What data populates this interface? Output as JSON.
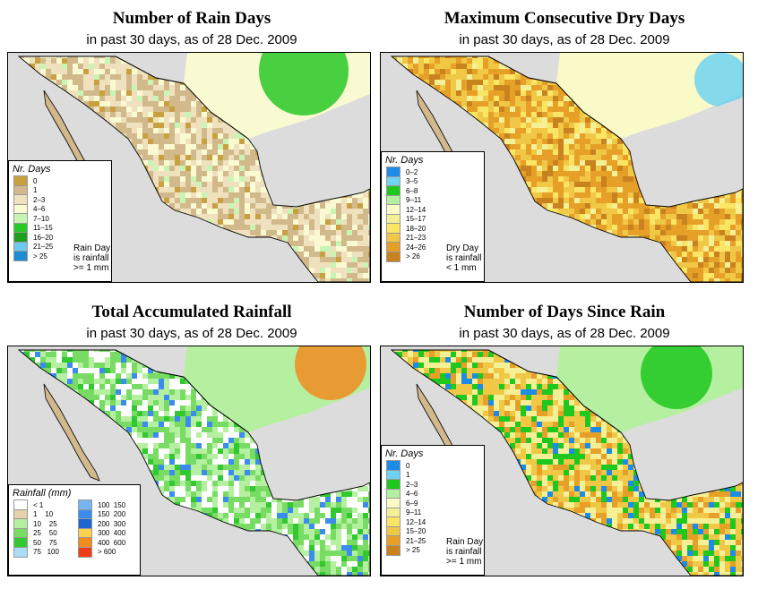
{
  "panels": [
    {
      "id": "rain-days",
      "title": "Number of Rain Days",
      "subtitle": "in past 30 days, as of  28 Dec. 2009",
      "legend_title": "Nr. Days",
      "legend": [
        {
          "label": "0",
          "color": "#c8a040"
        },
        {
          "label": "1",
          "color": "#d2b98c"
        },
        {
          "label": "2–3",
          "color": "#f0e1be"
        },
        {
          "label": "4–6",
          "color": "#fafad2"
        },
        {
          "label": "7–10",
          "color": "#c8f5b4"
        },
        {
          "label": "11–15",
          "color": "#28c828"
        },
        {
          "label": "16–20",
          "color": "#1ea01e"
        },
        {
          "label": "21–25",
          "color": "#6ec8f0"
        },
        {
          "label": "> 25",
          "color": "#1e8cd2"
        }
      ],
      "note": [
        "Rain Day",
        "is rainfall",
        ">= 1 mm"
      ]
    },
    {
      "id": "dry-days",
      "title": "Maximum Consecutive Dry Days",
      "subtitle": "in past 30 days, as of  28 Dec. 2009",
      "legend_title": "Nr. Days",
      "legend": [
        {
          "label": "0–2",
          "color": "#1e8ce6"
        },
        {
          "label": "3–5",
          "color": "#6ed2f0"
        },
        {
          "label": "6–8",
          "color": "#1ec81e"
        },
        {
          "label": "9–11",
          "color": "#b4f0a0"
        },
        {
          "label": "12–14",
          "color": "#fafac8"
        },
        {
          "label": "15–17",
          "color": "#f5f096"
        },
        {
          "label": "18–20",
          "color": "#fae664"
        },
        {
          "label": "21–23",
          "color": "#f0c846"
        },
        {
          "label": "24–26",
          "color": "#e6a028"
        },
        {
          "label": "> 26",
          "color": "#c8821e"
        }
      ],
      "note": [
        "Dry Day",
        "is rainfall",
        "< 1 mm"
      ]
    },
    {
      "id": "total-rainfall",
      "title": "Total Accumulated Rainfall",
      "subtitle": "in past 30 days, as of  28 Dec. 2009",
      "legend_title": "Rainfall (mm)",
      "legend_col1": [
        {
          "label": "< 1",
          "color": "#ffffff"
        },
        {
          "label": "1    10",
          "color": "#e6d2aa"
        },
        {
          "label": "10    25",
          "color": "#b4f0a0"
        },
        {
          "label": "25    50",
          "color": "#78dc64"
        },
        {
          "label": "50    75",
          "color": "#32c832"
        },
        {
          "label": "75   100",
          "color": "#aadcf5"
        }
      ],
      "legend_col2": [
        {
          "label": "100  150",
          "color": "#78b4f0"
        },
        {
          "label": "150  200",
          "color": "#3c8cf0"
        },
        {
          "label": "200  300",
          "color": "#1e64d2"
        },
        {
          "label": "300  400",
          "color": "#fad250"
        },
        {
          "label": "400  600",
          "color": "#f08c1e"
        },
        {
          "label": "> 600",
          "color": "#f03c14"
        }
      ]
    },
    {
      "id": "days-since-rain",
      "title": "Number of Days Since Rain",
      "subtitle": "in past 30 days, as of  28 Dec. 2009",
      "legend_title": "Nr. Days",
      "legend": [
        {
          "label": "0",
          "color": "#1e8ce6"
        },
        {
          "label": "1",
          "color": "#6ed2f0"
        },
        {
          "label": "2–3",
          "color": "#1ec81e"
        },
        {
          "label": "4–6",
          "color": "#b4f0a0"
        },
        {
          "label": "6–9",
          "color": "#fafac8"
        },
        {
          "label": "9–11",
          "color": "#f5f096"
        },
        {
          "label": "12–14",
          "color": "#fae664"
        },
        {
          "label": "15–20",
          "color": "#f0c846"
        },
        {
          "label": "21–25",
          "color": "#e6a028"
        },
        {
          "label": "> 25",
          "color": "#c8821e"
        }
      ],
      "note": [
        "Rain Day",
        "is rainfall",
        ">= 1 mm"
      ]
    }
  ],
  "colors": {
    "ocean": "#dcdcdc",
    "us_land": "#fafad2",
    "border": "#000000"
  }
}
